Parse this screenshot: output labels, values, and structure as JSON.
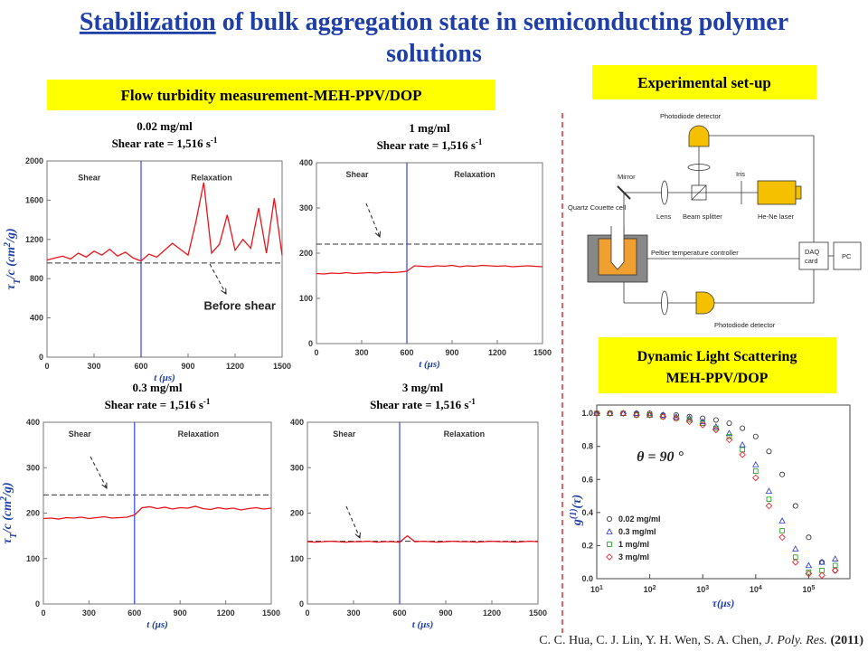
{
  "title": {
    "underlined": "Stabilization",
    "line1": "of bulk aggregation state in semiconducting polymer",
    "line2": "solutions"
  },
  "boxes": {
    "flow": "Flow turbidity measurement-MEH-PPV/DOP",
    "setup": "Experimental set-up",
    "dls1": "Dynamic Light Scattering",
    "dls2": "MEH-PPV/DOP"
  },
  "citation": {
    "authors": "C. C. Hua, C. J. Lin, Y. H. Wen, S. A. Chen,",
    "journal": "J. Poly. Res.",
    "year": "(2011)"
  },
  "diagram": {
    "photodiode_top": "Photodiode detector",
    "mirror": "Mirror",
    "iris": "Iris",
    "cell": "Quartz Couette cell",
    "lens": "Lens",
    "splitter": "Beam splitter",
    "laser": "He-Ne laser",
    "peltier": "Peltier temperature controller",
    "daq1": "DAQ",
    "daq2": "card",
    "pc": "PC",
    "photodiode_bottom": "Photodiode detector"
  },
  "chart_data": [
    {
      "type": "line",
      "title": "0.02 mg/ml",
      "subtitle": "Shear rate = 1,516 s",
      "subtitle_sup": "-1",
      "xlabel": "t (μs)",
      "ylabel": {
        "base": "τ",
        "sub": "T",
        "mid": "/c (cm",
        "sup": "2",
        "end": "/g)"
      },
      "annotations": [
        "Shear",
        "Relaxation",
        "Before shear"
      ],
      "xlim": [
        0,
        1500
      ],
      "xticks": [
        0,
        300,
        600,
        900,
        1200,
        1500
      ],
      "ylim": [
        0,
        2000
      ],
      "yticks": [
        0,
        400,
        800,
        1200,
        1600,
        2000
      ],
      "hline": 960,
      "vline": 600,
      "series": [
        {
          "color": "#e8141b",
          "x": [
            0,
            50,
            100,
            150,
            200,
            250,
            300,
            350,
            400,
            450,
            500,
            550,
            600,
            650,
            700,
            750,
            800,
            850,
            900,
            950,
            1000,
            1050,
            1100,
            1150,
            1200,
            1250,
            1300,
            1350,
            1400,
            1450,
            1500
          ],
          "values": [
            990,
            1010,
            1030,
            1000,
            1060,
            1020,
            1080,
            1040,
            1100,
            1030,
            1070,
            1010,
            980,
            1050,
            1020,
            1090,
            1160,
            1100,
            1040,
            1380,
            1780,
            1060,
            1150,
            1450,
            1090,
            1200,
            1110,
            1520,
            1060,
            1620,
            1040
          ]
        }
      ]
    },
    {
      "type": "line",
      "title": "1 mg/ml",
      "subtitle": "Shear rate = 1,516 s",
      "subtitle_sup": "-1",
      "xlabel": "t (μs)",
      "annotations": [
        "Shear",
        "Relaxation"
      ],
      "xlim": [
        0,
        1500
      ],
      "xticks": [
        0,
        300,
        600,
        900,
        1200,
        1500
      ],
      "ylim": [
        0,
        400
      ],
      "yticks": [
        0,
        100,
        200,
        300,
        400
      ],
      "hline": 220,
      "vline": 600,
      "series": [
        {
          "color": "#e8141b",
          "x": [
            0,
            50,
            100,
            150,
            200,
            250,
            300,
            350,
            400,
            450,
            500,
            550,
            600,
            650,
            700,
            750,
            800,
            850,
            900,
            950,
            1000,
            1050,
            1100,
            1150,
            1200,
            1250,
            1300,
            1350,
            1400,
            1450,
            1500
          ],
          "values": [
            155,
            154,
            156,
            155,
            157,
            155,
            156,
            157,
            156,
            158,
            157,
            158,
            160,
            172,
            171,
            170,
            172,
            171,
            173,
            170,
            172,
            171,
            173,
            172,
            171,
            172,
            170,
            171,
            172,
            171,
            170
          ]
        }
      ]
    },
    {
      "type": "line",
      "title": "0.3 mg/ml",
      "subtitle": "Shear rate = 1,516 s",
      "subtitle_sup": "-1",
      "xlabel": "t (μs)",
      "ylabel": {
        "base": "τ",
        "sub": "T",
        "mid": "/c (cm",
        "sup": "2",
        "end": "/g)"
      },
      "annotations": [
        "Shear",
        "Relaxation"
      ],
      "xlim": [
        0,
        1500
      ],
      "xticks": [
        0,
        300,
        600,
        900,
        1200,
        1500
      ],
      "ylim": [
        0,
        400
      ],
      "yticks": [
        0,
        100,
        200,
        300,
        400
      ],
      "hline": 240,
      "vline": 600,
      "series": [
        {
          "color": "#e8141b",
          "x": [
            0,
            50,
            100,
            150,
            200,
            250,
            300,
            350,
            400,
            450,
            500,
            550,
            600,
            650,
            700,
            750,
            800,
            850,
            900,
            950,
            1000,
            1050,
            1100,
            1150,
            1200,
            1250,
            1300,
            1350,
            1400,
            1450,
            1500
          ],
          "values": [
            188,
            189,
            187,
            190,
            189,
            191,
            188,
            190,
            192,
            189,
            190,
            191,
            196,
            212,
            214,
            210,
            213,
            209,
            212,
            211,
            215,
            210,
            208,
            212,
            209,
            211,
            207,
            210,
            212,
            209,
            211
          ]
        }
      ]
    },
    {
      "type": "line",
      "title": "3 mg/ml",
      "subtitle": "Shear rate = 1,516 s",
      "subtitle_sup": "-1",
      "xlabel": "t (μs)",
      "annotations": [
        "Shear",
        "Relaxation"
      ],
      "xlim": [
        0,
        1500
      ],
      "xticks": [
        0,
        300,
        600,
        900,
        1200,
        1500
      ],
      "ylim": [
        0,
        400
      ],
      "yticks": [
        0,
        100,
        200,
        300,
        400
      ],
      "hline": 138,
      "vline": 600,
      "series": [
        {
          "color": "#e8141b",
          "x": [
            0,
            50,
            100,
            150,
            200,
            250,
            300,
            350,
            400,
            450,
            500,
            550,
            600,
            650,
            700,
            750,
            800,
            850,
            900,
            950,
            1000,
            1050,
            1100,
            1150,
            1200,
            1250,
            1300,
            1350,
            1400,
            1450,
            1500
          ],
          "values": [
            137,
            136,
            137,
            138,
            137,
            136,
            137,
            137,
            138,
            136,
            137,
            137,
            136,
            150,
            137,
            138,
            137,
            136,
            137,
            138,
            137,
            137,
            136,
            137,
            138,
            137,
            137,
            136,
            137,
            138,
            137
          ]
        }
      ]
    },
    {
      "type": "scatter",
      "xlog": true,
      "xlabel": "τ(μs)",
      "ylabel": {
        "base": "g",
        "sup": "(1)",
        "end": "(τ)"
      },
      "annotations": [
        "θ = 90 °"
      ],
      "legend": "lower left",
      "xlim": [
        10,
        600000
      ],
      "xticks": [
        {
          "value": 10,
          "label": "10",
          "sup": "1"
        },
        {
          "value": 100,
          "label": "10",
          "sup": "2"
        },
        {
          "value": 1000,
          "label": "10",
          "sup": "3"
        },
        {
          "value": 10000,
          "label": "10",
          "sup": "4"
        },
        {
          "value": 100000,
          "label": "10",
          "sup": "5"
        }
      ],
      "ylim": [
        0,
        1.05
      ],
      "yticks": [
        {
          "value": 0,
          "label": "0.0"
        },
        {
          "value": 0.2,
          "label": "0.2"
        },
        {
          "value": 0.4,
          "label": "0.4"
        },
        {
          "value": 0.6,
          "label": "0.6"
        },
        {
          "value": 0.8,
          "label": "0.8"
        },
        {
          "value": 1,
          "label": "1.0"
        }
      ],
      "series": [
        {
          "name": "0.02 mg/ml",
          "color": "#222222",
          "marker": "circle",
          "x": [
            10,
            17.8,
            31.6,
            56.2,
            100,
            178,
            316,
            562,
            1000,
            1778,
            3162,
            5623,
            10000,
            17783,
            31623,
            56234,
            100000,
            177828,
            316228
          ],
          "values": [
            1,
            1,
            1,
            1,
            1,
            0.99,
            0.99,
            0.98,
            0.97,
            0.96,
            0.94,
            0.91,
            0.86,
            0.77,
            0.63,
            0.44,
            0.25,
            0.1,
            0.05
          ]
        },
        {
          "name": "0.3 mg/ml",
          "color": "#2233dd",
          "marker": "triangle",
          "x": [
            10,
            17.8,
            31.6,
            56.2,
            100,
            178,
            316,
            562,
            1000,
            1778,
            3162,
            5623,
            10000,
            17783,
            31623,
            56234,
            100000,
            177828,
            316228
          ],
          "values": [
            1,
            1,
            1,
            1,
            0.99,
            0.99,
            0.98,
            0.97,
            0.95,
            0.92,
            0.88,
            0.81,
            0.69,
            0.53,
            0.35,
            0.18,
            0.08,
            0.1,
            0.12
          ]
        },
        {
          "name": "1 mg/ml",
          "color": "#119911",
          "marker": "square",
          "x": [
            10,
            17.8,
            31.6,
            56.2,
            100,
            178,
            316,
            562,
            1000,
            1778,
            3162,
            5623,
            10000,
            17783,
            31623,
            56234,
            100000,
            177828,
            316228
          ],
          "values": [
            1,
            1,
            1,
            0.99,
            0.99,
            0.98,
            0.97,
            0.96,
            0.94,
            0.91,
            0.86,
            0.78,
            0.65,
            0.48,
            0.29,
            0.13,
            0.04,
            0.05,
            0.08
          ]
        },
        {
          "name": "3 mg/ml",
          "color": "#e8141b",
          "marker": "diamond",
          "x": [
            10,
            17.8,
            31.6,
            56.2,
            100,
            178,
            316,
            562,
            1000,
            1778,
            3162,
            5623,
            10000,
            17783,
            31623,
            56234,
            100000,
            177828,
            316228
          ],
          "values": [
            1,
            1,
            1,
            0.99,
            0.99,
            0.98,
            0.97,
            0.95,
            0.93,
            0.9,
            0.84,
            0.75,
            0.61,
            0.44,
            0.25,
            0.1,
            0.03,
            0.02,
            0.05
          ]
        }
      ]
    }
  ]
}
